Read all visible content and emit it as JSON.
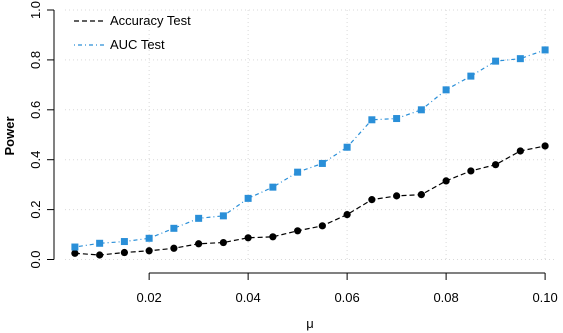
{
  "chart_data": {
    "type": "line",
    "title": "",
    "xlabel": "μ",
    "ylabel": "Power",
    "xlim": [
      0.003,
      0.102
    ],
    "ylim": [
      -0.01,
      1.0
    ],
    "x_ticks": [
      "0.02",
      "0.04",
      "0.06",
      "0.08",
      "0.10"
    ],
    "y_ticks": [
      "0.0",
      "0.2",
      "0.4",
      "0.6",
      "0.8",
      "1.0"
    ],
    "x_tick_values": [
      0.02,
      0.04,
      0.06,
      0.08,
      0.1
    ],
    "y_tick_values": [
      0.0,
      0.2,
      0.4,
      0.6,
      0.8,
      1.0
    ],
    "grid": true,
    "legend_position": "top-left",
    "x": [
      0.005,
      0.01,
      0.015,
      0.02,
      0.025,
      0.03,
      0.035,
      0.04,
      0.045,
      0.05,
      0.055,
      0.06,
      0.065,
      0.07,
      0.075,
      0.08,
      0.085,
      0.09,
      0.095,
      0.1
    ],
    "series": [
      {
        "name": "Accuracy Test",
        "color": "#000000",
        "line_style": "dashed",
        "marker": "circle",
        "values": [
          0.025,
          0.018,
          0.028,
          0.035,
          0.045,
          0.063,
          0.068,
          0.087,
          0.091,
          0.115,
          0.135,
          0.18,
          0.24,
          0.255,
          0.26,
          0.315,
          0.355,
          0.38,
          0.435,
          0.455
        ]
      },
      {
        "name": "AUC Test",
        "color": "#2a8fd8",
        "line_style": "dotdash",
        "marker": "square",
        "values": [
          0.05,
          0.065,
          0.072,
          0.085,
          0.125,
          0.165,
          0.175,
          0.245,
          0.29,
          0.35,
          0.385,
          0.45,
          0.56,
          0.565,
          0.6,
          0.68,
          0.735,
          0.795,
          0.805,
          0.84
        ]
      }
    ]
  }
}
